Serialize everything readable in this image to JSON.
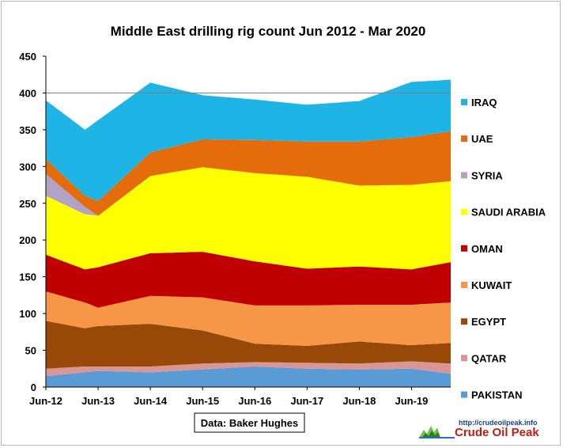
{
  "chart_data": {
    "type": "area",
    "stacked": true,
    "title": "Middle East drilling rig count Jun  2012 - Mar 2020",
    "xlabel": "",
    "ylabel": "",
    "ylim": [
      0,
      450
    ],
    "yticks": [
      0,
      50,
      100,
      150,
      200,
      250,
      300,
      350,
      400,
      450
    ],
    "x_start": "Jun-12",
    "x_end": "Mar-20",
    "x_tick_labels": [
      "Jun-12",
      "Jun-13",
      "Jun-14",
      "Jun-15",
      "Jun-16",
      "Jun-17",
      "Jun-18",
      "Jun-19"
    ],
    "gridlines": [
      400
    ],
    "legend_position": "right",
    "source_label": "Data: Baker Hughes",
    "anchors": [
      "Jun-12",
      "Mar-13",
      "Jun-13",
      "Jun-14",
      "Jun-15",
      "Jun-16",
      "Jun-17",
      "Jun-18",
      "Jun-19",
      "Mar-20"
    ],
    "series": [
      {
        "name": "PAKISTAN",
        "color": "#5b9bd5",
        "values": [
          15,
          20,
          22,
          20,
          24,
          28,
          25,
          24,
          25,
          18
        ]
      },
      {
        "name": "QATAR",
        "color": "#d99694",
        "values": [
          10,
          8,
          6,
          8,
          8,
          6,
          8,
          8,
          10,
          14
        ]
      },
      {
        "name": "EGYPT",
        "color": "#984807",
        "values": [
          65,
          52,
          55,
          58,
          45,
          25,
          23,
          30,
          22,
          28
        ]
      },
      {
        "name": "KUWAIT",
        "color": "#f79646",
        "values": [
          40,
          35,
          25,
          38,
          45,
          52,
          55,
          50,
          55,
          55
        ]
      },
      {
        "name": "OMAN",
        "color": "#c00000",
        "values": [
          50,
          45,
          55,
          58,
          62,
          60,
          50,
          52,
          48,
          55
        ]
      },
      {
        "name": "SAUDI ARABIA",
        "color": "#ffff00",
        "values": [
          80,
          75,
          70,
          105,
          115,
          120,
          125,
          110,
          115,
          110
        ]
      },
      {
        "name": "SYRIA",
        "color": "#b3a2c7",
        "values": [
          30,
          10,
          0,
          0,
          0,
          0,
          0,
          0,
          0,
          0
        ]
      },
      {
        "name": "UAE",
        "color": "#e46c0a",
        "values": [
          20,
          15,
          20,
          32,
          38,
          45,
          48,
          60,
          65,
          68
        ]
      },
      {
        "name": "IRAQ",
        "color": "#1eb4e6",
        "values": [
          80,
          90,
          110,
          95,
          60,
          55,
          50,
          55,
          75,
          70
        ]
      }
    ],
    "legend_order": [
      "IRAQ",
      "UAE",
      "SYRIA",
      "SAUDI ARABIA",
      "OMAN",
      "KUWAIT",
      "EGYPT",
      "QATAR",
      "PAKISTAN"
    ]
  },
  "logo": {
    "url": "http://crudeoilpeak.info",
    "name": "Crude Oil Peak"
  }
}
